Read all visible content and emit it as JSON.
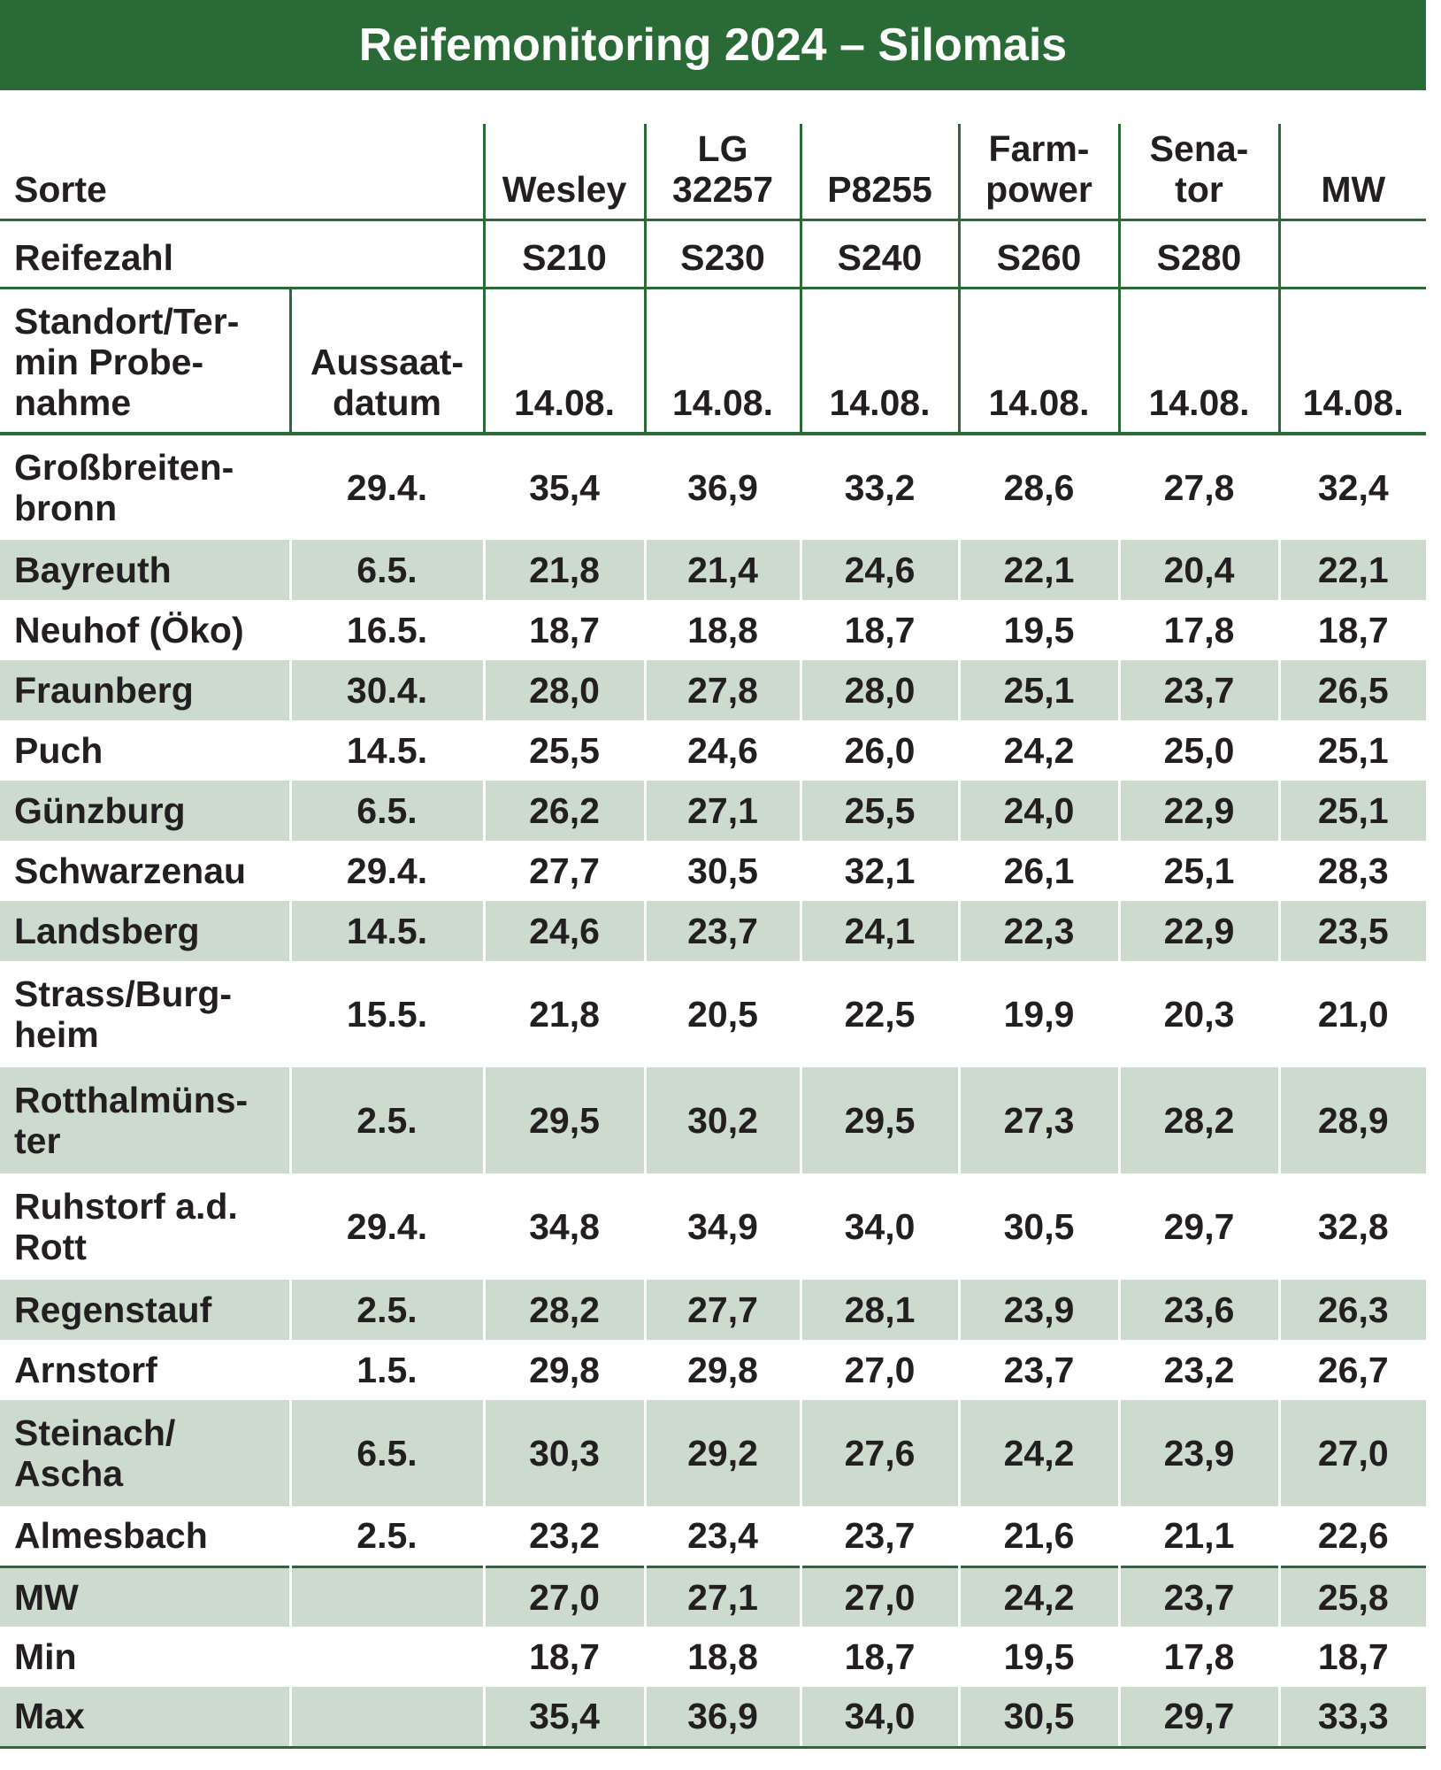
{
  "title": "Reifemonitoring 2024 – Silomais",
  "header": {
    "sorte": "Sorte",
    "varieties": [
      "Wesley",
      "LG\n32257",
      "P8255",
      "Farm-\npower",
      "Sena-\ntor",
      "MW"
    ],
    "reifezahl_label": "Reifezahl",
    "reifezahl": [
      "S210",
      "S230",
      "S240",
      "S260",
      "S280"
    ],
    "standort_label": "Standort/Ter-\nmin Probe-\nnahme",
    "aussaat_label": "Aussaat-\ndatum",
    "dates": [
      "14.08.",
      "14.08.",
      "14.08.",
      "14.08.",
      "14.08.",
      "14.08."
    ]
  },
  "rows": [
    {
      "label": "Großbreiten-\nbronn",
      "sowing": "29.4.",
      "values": [
        "35,4",
        "36,9",
        "33,2",
        "28,6",
        "27,8",
        "32,4"
      ]
    },
    {
      "label": "Bayreuth",
      "sowing": "6.5.",
      "values": [
        "21,8",
        "21,4",
        "24,6",
        "22,1",
        "20,4",
        "22,1"
      ]
    },
    {
      "label": "Neuhof (Öko)",
      "sowing": "16.5.",
      "values": [
        "18,7",
        "18,8",
        "18,7",
        "19,5",
        "17,8",
        "18,7"
      ]
    },
    {
      "label": "Fraunberg",
      "sowing": "30.4.",
      "values": [
        "28,0",
        "27,8",
        "28,0",
        "25,1",
        "23,7",
        "26,5"
      ]
    },
    {
      "label": "Puch",
      "sowing": "14.5.",
      "values": [
        "25,5",
        "24,6",
        "26,0",
        "24,2",
        "25,0",
        "25,1"
      ]
    },
    {
      "label": "Günzburg",
      "sowing": "6.5.",
      "values": [
        "26,2",
        "27,1",
        "25,5",
        "24,0",
        "22,9",
        "25,1"
      ]
    },
    {
      "label": "Schwarzenau",
      "sowing": "29.4.",
      "values": [
        "27,7",
        "30,5",
        "32,1",
        "26,1",
        "25,1",
        "28,3"
      ]
    },
    {
      "label": "Landsberg",
      "sowing": "14.5.",
      "values": [
        "24,6",
        "23,7",
        "24,1",
        "22,3",
        "22,9",
        "23,5"
      ]
    },
    {
      "label": "Strass/Burg-\nheim",
      "sowing": "15.5.",
      "values": [
        "21,8",
        "20,5",
        "22,5",
        "19,9",
        "20,3",
        "21,0"
      ]
    },
    {
      "label": "Rotthalmüns-\nter",
      "sowing": "2.5.",
      "values": [
        "29,5",
        "30,2",
        "29,5",
        "27,3",
        "28,2",
        "28,9"
      ]
    },
    {
      "label": "Ruhstorf a.d.\nRott",
      "sowing": "29.4.",
      "values": [
        "34,8",
        "34,9",
        "34,0",
        "30,5",
        "29,7",
        "32,8"
      ]
    },
    {
      "label": "Regenstauf",
      "sowing": "2.5.",
      "values": [
        "28,2",
        "27,7",
        "28,1",
        "23,9",
        "23,6",
        "26,3"
      ]
    },
    {
      "label": "Arnstorf",
      "sowing": "1.5.",
      "values": [
        "29,8",
        "29,8",
        "27,0",
        "23,7",
        "23,2",
        "26,7"
      ]
    },
    {
      "label": "Steinach/\nAscha",
      "sowing": "6.5.",
      "values": [
        "30,3",
        "29,2",
        "27,6",
        "24,2",
        "23,9",
        "27,0"
      ]
    },
    {
      "label": "Almesbach",
      "sowing": "2.5.",
      "values": [
        "23,2",
        "23,4",
        "23,7",
        "21,6",
        "21,1",
        "22,6"
      ]
    },
    {
      "label": "MW",
      "values": [
        "27,0",
        "27,1",
        "27,0",
        "24,2",
        "23,7",
        "25,8"
      ]
    },
    {
      "label": "Min",
      "values": [
        "18,7",
        "18,8",
        "18,7",
        "19,5",
        "17,8",
        "18,7"
      ]
    },
    {
      "label": "Max",
      "values": [
        "35,4",
        "36,9",
        "34,0",
        "30,5",
        "29,7",
        "33,3"
      ]
    }
  ]
}
